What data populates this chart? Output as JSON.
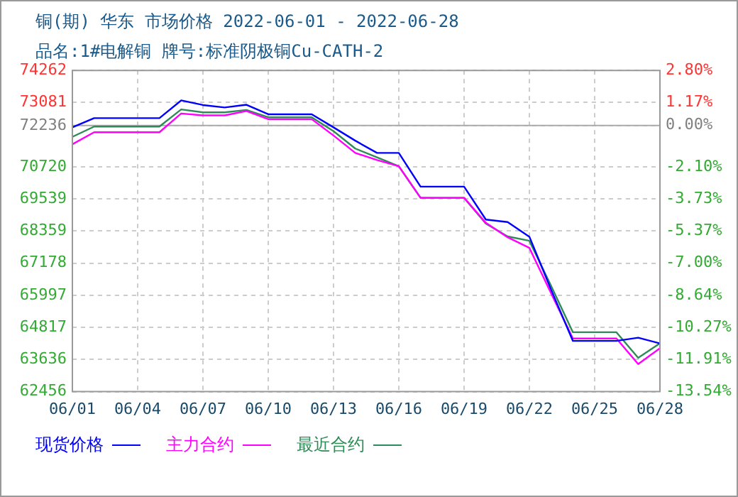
{
  "chart_data": {
    "type": "line",
    "title": "铜(期) 华东 市场价格 2022-06-01 - 2022-06-28",
    "subtitle": "品名:1#电解铜 牌号:标准阴极铜Cu-CATH-2",
    "x": [
      "--06-01",
      "--06-02",
      "--06-03",
      "--06-04",
      "--06-05",
      "--06-06",
      "--06-07",
      "--06-08",
      "--06-09",
      "--06-10",
      "--06-11",
      "--06-12",
      "--06-13",
      "--06-14",
      "--06-15",
      "--06-16",
      "--06-17",
      "--06-18",
      "--06-19",
      "--06-20",
      "--06-21",
      "--06-22",
      "--06-23",
      "--06-24",
      "--06-25",
      "--06-26",
      "--06-27",
      "--06-28"
    ],
    "series": [
      {
        "name": "现货价格",
        "color": "#0000ff",
        "values": [
          72170,
          72510,
          72510,
          72510,
          72510,
          73160,
          72990,
          72900,
          73000,
          72650,
          72650,
          72650,
          72170,
          71680,
          71230,
          71230,
          69990,
          69990,
          69990,
          68780,
          68690,
          68150,
          66200,
          64320,
          64320,
          64320,
          64440,
          64230
        ]
      },
      {
        "name": "主力合约",
        "color": "#ff00ff",
        "values": [
          71550,
          71990,
          71990,
          71990,
          71990,
          72680,
          72610,
          72610,
          72770,
          72470,
          72470,
          72470,
          71870,
          71230,
          70970,
          70740,
          69580,
          69580,
          69580,
          68660,
          68130,
          67740,
          66070,
          64410,
          64410,
          64410,
          63470,
          64050
        ]
      },
      {
        "name": "最近合约",
        "color": "#2e8b57",
        "values": [
          71820,
          72200,
          72200,
          72200,
          72200,
          72830,
          72720,
          72720,
          72810,
          72540,
          72540,
          72540,
          72030,
          71390,
          71070,
          70740,
          69580,
          69580,
          69580,
          68630,
          68160,
          68000,
          66340,
          64640,
          64640,
          64640,
          63700,
          64230
        ]
      }
    ],
    "xlim": [
      "--06-01",
      "--06-28"
    ],
    "xticks": [
      {
        "value": "--06-01",
        "label": "06/01"
      },
      {
        "value": "--06-04",
        "label": "06/04"
      },
      {
        "value": "--06-07",
        "label": "06/07"
      },
      {
        "value": "--06-10",
        "label": "06/10"
      },
      {
        "value": "--06-13",
        "label": "06/13"
      },
      {
        "value": "--06-16",
        "label": "06/16"
      },
      {
        "value": "--06-19",
        "label": "06/19"
      },
      {
        "value": "--06-22",
        "label": "06/22"
      },
      {
        "value": "--06-25",
        "label": "06/25"
      },
      {
        "value": "--06-28",
        "label": "06/28"
      }
    ],
    "ylim": [
      62456,
      74262
    ],
    "yticks": [
      74262,
      73081,
      72236,
      70720,
      69539,
      68359,
      67178,
      65997,
      64817,
      63636,
      62456
    ],
    "y2lim": [
      -13.54,
      2.8
    ],
    "y2ticks": [
      {
        "value": 2.8,
        "label": "2.80%"
      },
      {
        "value": 1.17,
        "label": "1.17%"
      },
      {
        "value": 0,
        "label": "0.00%"
      },
      {
        "value": -2.1,
        "label": "-2.10%"
      },
      {
        "value": -3.73,
        "label": "-3.73%"
      },
      {
        "value": -5.37,
        "label": "-5.37%"
      },
      {
        "value": -7,
        "label": "-7.00%"
      },
      {
        "value": -8.64,
        "label": "-8.64%"
      },
      {
        "value": -10.27,
        "label": "-10.27%"
      },
      {
        "value": -11.91,
        "label": "-11.91%"
      },
      {
        "value": -13.54,
        "label": "-13.54%"
      }
    ],
    "ref_lines": [
      {
        "axis": "y2",
        "value": 0,
        "color": "#aaaaaa",
        "line_style": "solid"
      }
    ],
    "grid": true,
    "legend": "bottom",
    "marker": "none",
    "line_style": "solid"
  }
}
